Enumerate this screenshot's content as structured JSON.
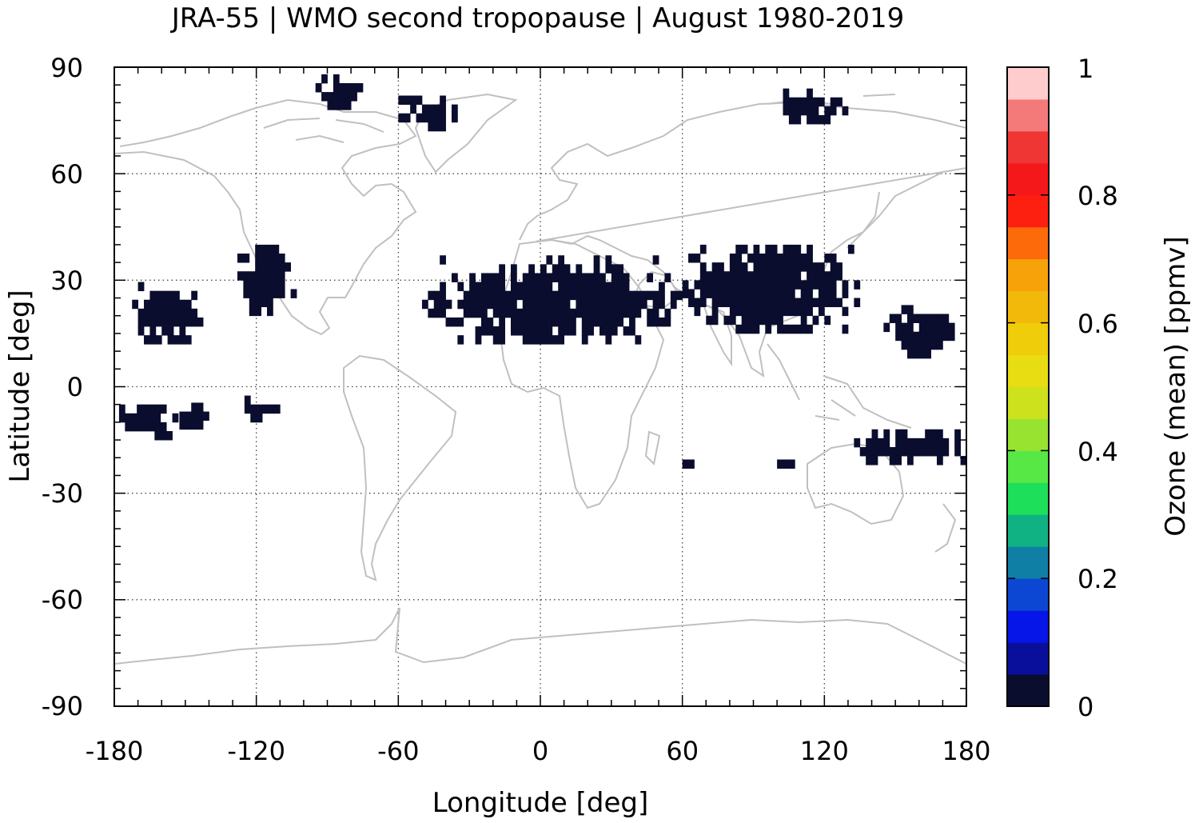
{
  "title": "JRA-55 | WMO second tropopause | August 1980-2019",
  "axes": {
    "xlabel": "Longitude [deg]",
    "ylabel": "Latitude [deg]",
    "xlim": [
      -180,
      180
    ],
    "ylim": [
      -90,
      90
    ],
    "xticks": [
      "-180",
      "-120",
      "-60",
      "0",
      "60",
      "120",
      "180"
    ],
    "yticks": [
      "90",
      "60",
      "30",
      "0",
      "-30",
      "-60",
      "-90"
    ],
    "grid": "dotted"
  },
  "colorbar": {
    "label": "Ozone (mean) [ppmv]",
    "range": [
      0,
      1
    ],
    "ticks": [
      "0",
      "0.2",
      "0.4",
      "0.6",
      "0.8",
      "1"
    ],
    "colors": [
      "#0b0d2e",
      "#0a0f9b",
      "#0716e8",
      "#0c47d4",
      "#0f7fa6",
      "#10b283",
      "#1ddf59",
      "#57e845",
      "#97e32f",
      "#cde21d",
      "#e8dd12",
      "#efcd0b",
      "#f2b90a",
      "#f8a20a",
      "#fd6a0a",
      "#fd2010",
      "#f5181a",
      "#f03535",
      "#f47a7a",
      "#fecccc"
    ]
  },
  "chart_data": {
    "type": "heatmap",
    "title": "JRA-55 | WMO second tropopause | August 1980-2019",
    "xlabel": "Longitude [deg]",
    "ylabel": "Latitude [deg]",
    "xlim": [
      -180,
      180
    ],
    "ylim": [
      -90,
      90
    ],
    "grid": true,
    "colorbar_label": "Ozone (mean) [ppmv]",
    "colorbar_range": [
      0,
      1
    ],
    "data_regions": [
      {
        "lon_range": [
          -175,
          -140
        ],
        "lat_range": [
          12,
          28
        ],
        "value": 0.02
      },
      {
        "lon_range": [
          -128,
          -105
        ],
        "lat_range": [
          20,
          40
        ],
        "value": 0.02
      },
      {
        "lon_range": [
          -50,
          60
        ],
        "lat_range": [
          12,
          35
        ],
        "value": 0.02
      },
      {
        "lon_range": [
          60,
          135
        ],
        "lat_range": [
          15,
          40
        ],
        "value": 0.02
      },
      {
        "lon_range": [
          145,
          175
        ],
        "lat_range": [
          8,
          22
        ],
        "value": 0.02
      },
      {
        "lon_range": [
          -178,
          -155
        ],
        "lat_range": [
          -15,
          -5
        ],
        "value": 0.02
      },
      {
        "lon_range": [
          -155,
          -140
        ],
        "lat_range": [
          -12,
          -5
        ],
        "value": 0.02
      },
      {
        "lon_range": [
          -125,
          -110
        ],
        "lat_range": [
          -10,
          -4
        ],
        "value": 0.02
      },
      {
        "lon_range": [
          60,
          65
        ],
        "lat_range": [
          -23,
          -21
        ],
        "value": 0.02
      },
      {
        "lon_range": [
          100,
          110
        ],
        "lat_range": [
          -23,
          -20
        ],
        "value": 0.02
      },
      {
        "lon_range": [
          130,
          178
        ],
        "lat_range": [
          -22,
          -12
        ],
        "value": 0.02
      },
      {
        "lon_range": [
          -95,
          -75
        ],
        "lat_range": [
          78,
          86
        ],
        "value": 0.02
      },
      {
        "lon_range": [
          -60,
          -35
        ],
        "lat_range": [
          72,
          82
        ],
        "value": 0.02
      },
      {
        "lon_range": [
          100,
          130
        ],
        "lat_range": [
          74,
          82
        ],
        "value": 0.02
      }
    ]
  }
}
